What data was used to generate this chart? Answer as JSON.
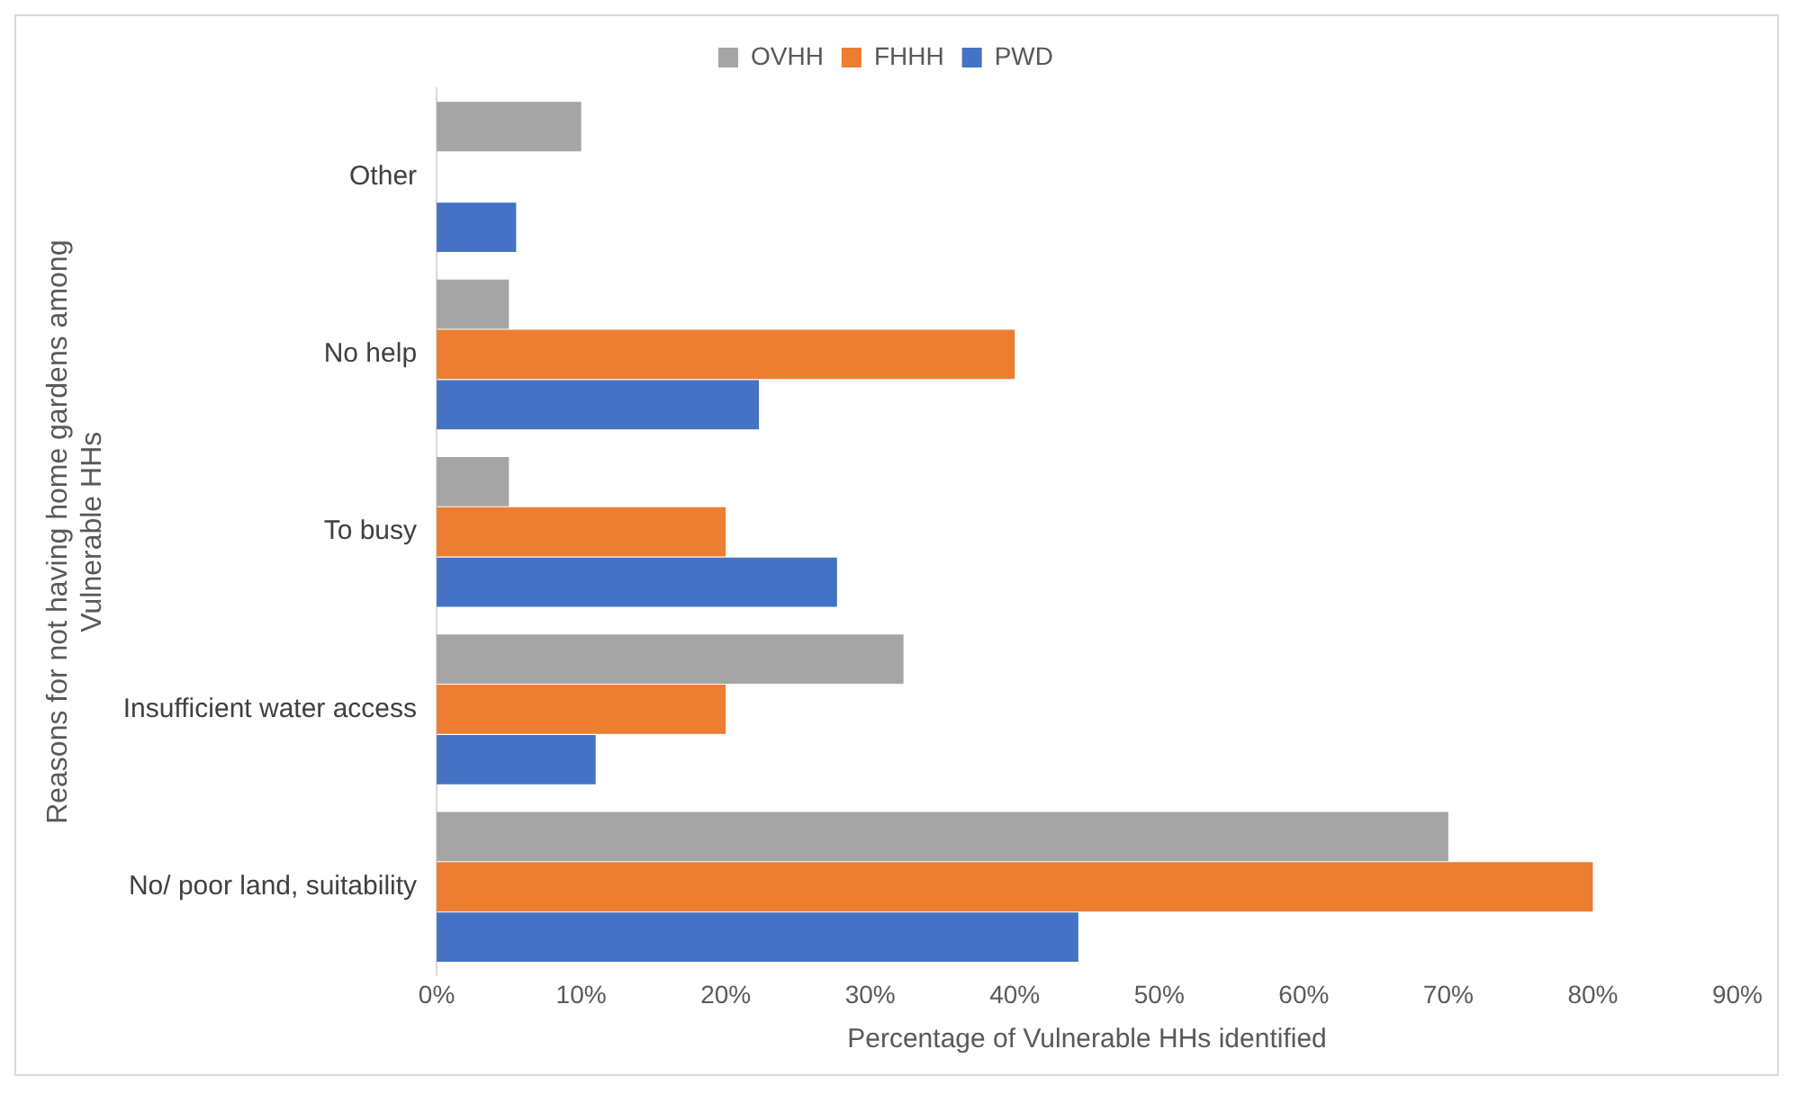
{
  "chart_data": {
    "type": "bar",
    "orientation": "horizontal",
    "categories": [
      "Other",
      "No help",
      "To busy",
      "Insufficient water access",
      "No/ poor land, suitability"
    ],
    "series": [
      {
        "name": "OVHH",
        "color": "#a5a5a5",
        "values": [
          10,
          5,
          5,
          32.3,
          70
        ]
      },
      {
        "name": "FHHH",
        "color": "#ed7d31",
        "values": [
          null,
          40,
          20,
          20,
          80
        ]
      },
      {
        "name": "PWD",
        "color": "#4472c4",
        "values": [
          5.5,
          22.3,
          27.7,
          11,
          44.4
        ]
      }
    ],
    "xlabel": "Percentage of Vulnerable HHs identified",
    "ylabel": "Reasons for not having home gardens among Vulnerable HHs",
    "xlim": [
      0,
      90
    ],
    "xticks": [
      {
        "value": 0,
        "label": "0%"
      },
      {
        "value": 10,
        "label": "10%"
      },
      {
        "value": 20,
        "label": "20%"
      },
      {
        "value": 30,
        "label": "30%"
      },
      {
        "value": 40,
        "label": "40%"
      },
      {
        "value": 50,
        "label": "50%"
      },
      {
        "value": 60,
        "label": "60%"
      },
      {
        "value": 70,
        "label": "70%"
      },
      {
        "value": 80,
        "label": "80%"
      },
      {
        "value": 90,
        "label": "90%"
      }
    ],
    "legend": "top",
    "grid": false
  }
}
